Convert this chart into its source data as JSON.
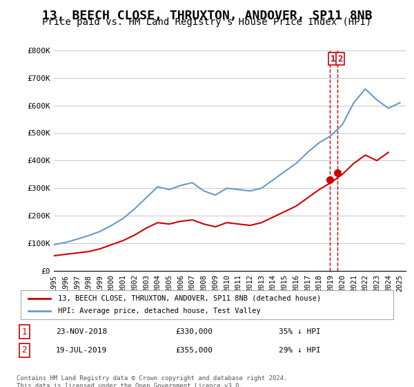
{
  "title": "13, BEECH CLOSE, THRUXTON, ANDOVER, SP11 8NB",
  "subtitle": "Price paid vs. HM Land Registry's House Price Index (HPI)",
  "ylabel": "",
  "ylim": [
    0,
    800000
  ],
  "yticks": [
    0,
    100000,
    200000,
    300000,
    400000,
    500000,
    600000,
    700000,
    800000
  ],
  "ytick_labels": [
    "£0",
    "£100K",
    "£200K",
    "£300K",
    "£400K",
    "£500K",
    "£600K",
    "£700K",
    "£800K"
  ],
  "xlim_start": 1995.0,
  "xlim_end": 2025.5,
  "title_fontsize": 13,
  "subtitle_fontsize": 10,
  "background_color": "#ffffff",
  "grid_color": "#cccccc",
  "legend_label_red": "13, BEECH CLOSE, THRUXTON, ANDOVER, SP11 8NB (detached house)",
  "legend_label_blue": "HPI: Average price, detached house, Test Valley",
  "footer": "Contains HM Land Registry data © Crown copyright and database right 2024.\nThis data is licensed under the Open Government Licence v3.0.",
  "transaction1_num": "1",
  "transaction1_date": "23-NOV-2018",
  "transaction1_price": "£330,000",
  "transaction1_hpi": "35% ↓ HPI",
  "transaction1_year": 2018.9,
  "transaction2_num": "2",
  "transaction2_date": "19-JUL-2019",
  "transaction2_price": "£355,000",
  "transaction2_hpi": "29% ↓ HPI",
  "transaction2_year": 2019.55,
  "red_line_color": "#cc0000",
  "blue_line_color": "#6699cc",
  "marker_color": "#cc0000",
  "hpi_years": [
    1995,
    1996,
    1997,
    1998,
    1999,
    2000,
    2001,
    2002,
    2003,
    2004,
    2005,
    2006,
    2007,
    2008,
    2009,
    2010,
    2011,
    2012,
    2013,
    2014,
    2015,
    2016,
    2017,
    2018,
    2019,
    2020,
    2021,
    2022,
    2023,
    2024,
    2025
  ],
  "hpi_values": [
    95000,
    103000,
    115000,
    128000,
    143000,
    165000,
    190000,
    225000,
    265000,
    305000,
    295000,
    310000,
    320000,
    290000,
    275000,
    300000,
    295000,
    290000,
    300000,
    330000,
    360000,
    390000,
    430000,
    465000,
    490000,
    530000,
    610000,
    660000,
    620000,
    590000,
    610000
  ],
  "red_years": [
    1995,
    1996,
    1997,
    1998,
    1999,
    2000,
    2001,
    2002,
    2003,
    2004,
    2005,
    2006,
    2007,
    2008,
    2009,
    2010,
    2011,
    2012,
    2013,
    2014,
    2015,
    2016,
    2017,
    2018,
    2019,
    2020,
    2021,
    2022,
    2023,
    2024
  ],
  "red_values": [
    55000,
    60000,
    65000,
    70000,
    80000,
    95000,
    110000,
    130000,
    155000,
    175000,
    170000,
    180000,
    185000,
    170000,
    160000,
    175000,
    170000,
    165000,
    175000,
    195000,
    215000,
    235000,
    265000,
    295000,
    320000,
    350000,
    390000,
    420000,
    400000,
    430000
  ],
  "xtick_years": [
    1995,
    1996,
    1997,
    1998,
    1999,
    2000,
    2001,
    2002,
    2003,
    2004,
    2005,
    2006,
    2007,
    2008,
    2009,
    2010,
    2011,
    2012,
    2013,
    2014,
    2015,
    2016,
    2017,
    2018,
    2019,
    2020,
    2021,
    2022,
    2023,
    2024,
    2025
  ]
}
